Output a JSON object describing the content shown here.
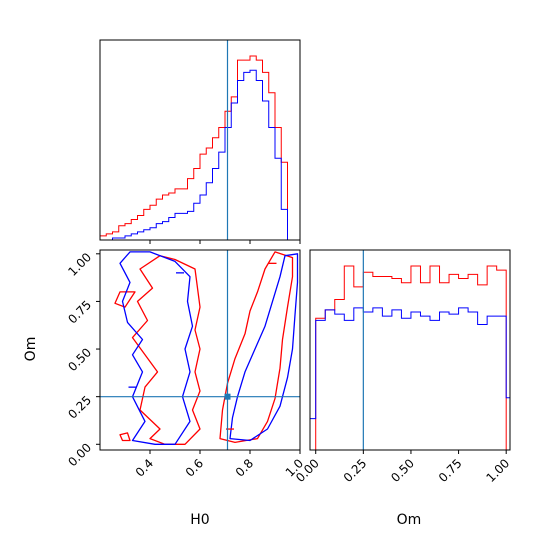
{
  "chart_data": {
    "type": "corner",
    "parameters": [
      "H0",
      "Om"
    ],
    "truths": {
      "H0": 0.71,
      "Om": 0.25
    },
    "truth_color": "#1f77b4",
    "series": [
      {
        "color": "#ff0000"
      },
      {
        "color": "#0000ff"
      }
    ],
    "panels": [
      {
        "id": "hist-H0",
        "type": "histogram",
        "xlim": [
          0.2,
          1.0
        ],
        "xticks": [
          0.4,
          0.6,
          0.8,
          1.0
        ],
        "bin_edges": [
          0.2,
          0.225,
          0.25,
          0.275,
          0.3,
          0.325,
          0.35,
          0.375,
          0.4,
          0.425,
          0.45,
          0.475,
          0.5,
          0.525,
          0.55,
          0.575,
          0.6,
          0.625,
          0.65,
          0.675,
          0.7,
          0.725,
          0.75,
          0.775,
          0.8,
          0.825,
          0.85,
          0.875,
          0.9,
          0.925,
          0.95,
          0.975,
          1.0
        ],
        "counts": [
          [
            2,
            3,
            4,
            7,
            8,
            10,
            12,
            15,
            17,
            20,
            22,
            23,
            25,
            25,
            30,
            35,
            42,
            45,
            50,
            55,
            63,
            70,
            88,
            88,
            90,
            88,
            82,
            72,
            55,
            38,
            0,
            0
          ],
          [
            0,
            0,
            1,
            1,
            2,
            3,
            4,
            5,
            6,
            8,
            9,
            11,
            13,
            13,
            14,
            18,
            22,
            28,
            35,
            43,
            55,
            67,
            78,
            82,
            83,
            78,
            68,
            55,
            40,
            15,
            0,
            0
          ]
        ]
      },
      {
        "id": "hist-Om",
        "type": "histogram",
        "xlim": [
          -0.03,
          1.02
        ],
        "xticks": [
          0.0,
          0.25,
          0.5,
          0.75,
          1.0
        ],
        "xticklabels": [
          "0.00",
          "0.25",
          "0.50",
          "0.75",
          "1.00"
        ],
        "xlabel": "Om",
        "bin_edges": [
          -0.03,
          0.0,
          0.05,
          0.1,
          0.15,
          0.2,
          0.25,
          0.3,
          0.35,
          0.4,
          0.45,
          0.5,
          0.55,
          0.6,
          0.65,
          0.7,
          0.75,
          0.8,
          0.85,
          0.9,
          0.95,
          1.0,
          1.02
        ],
        "counts": [
          [
            0,
            63,
            67,
            72,
            88,
            78,
            85,
            83,
            83,
            82,
            80,
            88,
            80,
            88,
            80,
            84,
            82,
            84,
            79,
            88,
            86,
            0
          ],
          [
            15,
            62,
            67,
            65,
            62,
            68,
            66,
            68,
            64,
            67,
            63,
            66,
            64,
            62,
            66,
            65,
            68,
            66,
            60,
            64,
            64,
            25
          ]
        ]
      },
      {
        "id": "contour-H0-Om",
        "type": "contour",
        "xlim": [
          0.2,
          1.0
        ],
        "ylim": [
          -0.03,
          1.02
        ],
        "xticks": [
          0.4,
          0.6,
          0.8,
          1.0
        ],
        "xticklabels": [
          "0.4",
          "0.6",
          "0.8",
          "1.0"
        ],
        "yticks": [
          0.0,
          0.25,
          0.5,
          0.75,
          1.0
        ],
        "yticklabels": [
          "0.00",
          "0.25",
          "0.50",
          "0.75",
          "1.00"
        ],
        "xlabel": "H0",
        "ylabel": "Om",
        "contours": [
          [
            [
              [
                0.4,
                0.03
              ],
              [
                0.44,
                0.08
              ],
              [
                0.36,
                0.18
              ],
              [
                0.38,
                0.3
              ],
              [
                0.43,
                0.38
              ],
              [
                0.38,
                0.47
              ],
              [
                0.33,
                0.56
              ],
              [
                0.39,
                0.65
              ],
              [
                0.35,
                0.75
              ],
              [
                0.41,
                0.82
              ],
              [
                0.36,
                0.92
              ],
              [
                0.44,
                0.99
              ],
              [
                0.5,
                0.97
              ],
              [
                0.58,
                0.92
              ],
              [
                0.59,
                0.82
              ],
              [
                0.6,
                0.72
              ],
              [
                0.58,
                0.6
              ],
              [
                0.6,
                0.5
              ],
              [
                0.58,
                0.38
              ],
              [
                0.6,
                0.28
              ],
              [
                0.57,
                0.18
              ],
              [
                0.6,
                0.08
              ],
              [
                0.54,
                0.0
              ],
              [
                0.46,
                0.0
              ]
            ],
            [
              [
                0.68,
                0.03
              ],
              [
                0.74,
                0.01
              ],
              [
                0.83,
                0.03
              ],
              [
                0.87,
                0.12
              ],
              [
                0.9,
                0.24
              ],
              [
                0.92,
                0.4
              ],
              [
                0.93,
                0.55
              ],
              [
                0.95,
                0.72
              ],
              [
                0.97,
                0.88
              ],
              [
                0.97,
                0.98
              ],
              [
                0.9,
                1.01
              ],
              [
                0.86,
                0.92
              ],
              [
                0.83,
                0.8
              ],
              [
                0.8,
                0.7
              ],
              [
                0.78,
                0.58
              ],
              [
                0.74,
                0.45
              ],
              [
                0.71,
                0.32
              ],
              [
                0.69,
                0.18
              ]
            ],
            [
              [
                0.28,
                0.8
              ],
              [
                0.34,
                0.8
              ],
              [
                0.3,
                0.72
              ],
              [
                0.26,
                0.74
              ]
            ],
            [
              [
                0.29,
                0.02
              ],
              [
                0.32,
                0.02
              ],
              [
                0.31,
                0.06
              ],
              [
                0.28,
                0.05
              ]
            ]
          ],
          [
            [
              [
                0.33,
                0.02
              ],
              [
                0.38,
                0.12
              ],
              [
                0.33,
                0.25
              ],
              [
                0.37,
                0.38
              ],
              [
                0.33,
                0.47
              ],
              [
                0.37,
                0.55
              ],
              [
                0.31,
                0.64
              ],
              [
                0.29,
                0.75
              ],
              [
                0.32,
                0.85
              ],
              [
                0.28,
                0.95
              ],
              [
                0.32,
                1.01
              ],
              [
                0.4,
                1.01
              ],
              [
                0.5,
                0.96
              ],
              [
                0.56,
                0.88
              ],
              [
                0.55,
                0.75
              ],
              [
                0.57,
                0.62
              ],
              [
                0.54,
                0.5
              ],
              [
                0.56,
                0.38
              ],
              [
                0.53,
                0.25
              ],
              [
                0.56,
                0.12
              ],
              [
                0.5,
                0.0
              ],
              [
                0.42,
                0.0
              ]
            ],
            [
              [
                0.72,
                0.03
              ],
              [
                0.8,
                0.02
              ],
              [
                0.87,
                0.08
              ],
              [
                0.92,
                0.2
              ],
              [
                0.95,
                0.35
              ],
              [
                0.97,
                0.5
              ],
              [
                0.98,
                0.68
              ],
              [
                0.99,
                0.85
              ],
              [
                0.99,
                1.0
              ],
              [
                0.94,
                0.99
              ],
              [
                0.92,
                0.88
              ],
              [
                0.89,
                0.75
              ],
              [
                0.86,
                0.62
              ],
              [
                0.82,
                0.5
              ],
              [
                0.78,
                0.38
              ],
              [
                0.75,
                0.25
              ],
              [
                0.73,
                0.14
              ]
            ]
          ]
        ],
        "markers": [
          {
            "series": 0,
            "points": [
              [
                0.72,
                0.08
              ],
              [
                0.89,
                0.95
              ]
            ]
          },
          {
            "series": 1,
            "points": [
              [
                0.52,
                0.9
              ],
              [
                0.33,
                0.3
              ]
            ]
          }
        ]
      }
    ]
  }
}
